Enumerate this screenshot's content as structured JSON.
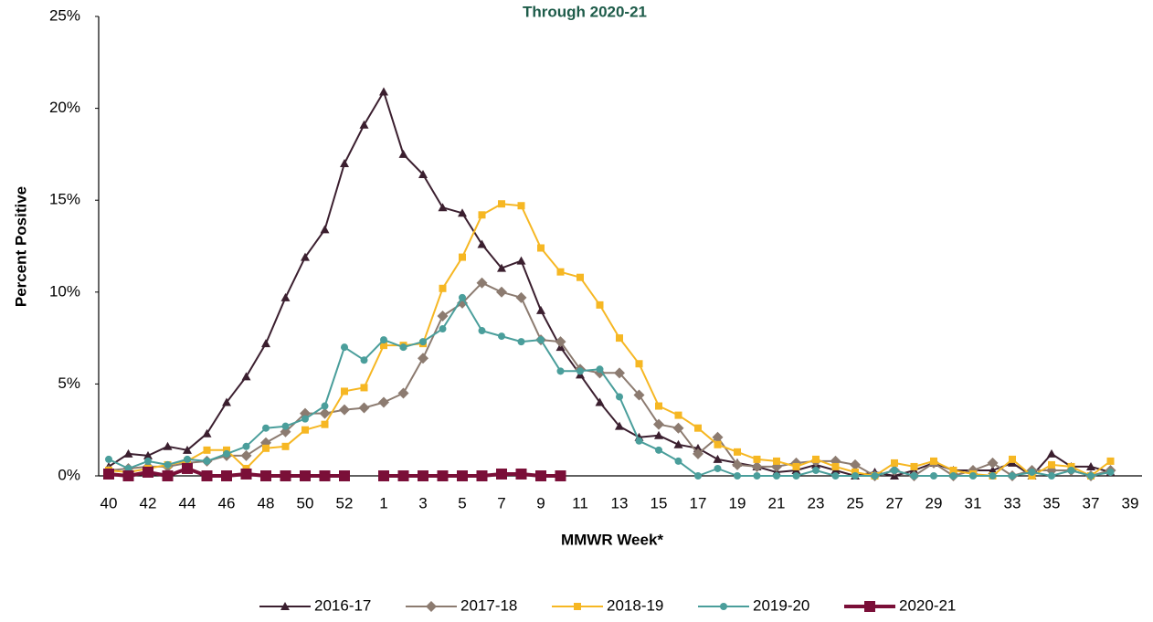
{
  "chart_data": {
    "type": "line",
    "title": "Through 2020-21",
    "x_label": "MMWR Week*",
    "y_label": "Percent Positive",
    "categories": [
      "40",
      null,
      "42",
      null,
      "44",
      null,
      "46",
      null,
      "48",
      null,
      "50",
      null,
      "52",
      null,
      "1",
      null,
      "3",
      null,
      "5",
      null,
      "7",
      null,
      "9",
      null,
      "11",
      null,
      "13",
      null,
      "15",
      null,
      "17",
      null,
      "19",
      null,
      "21",
      null,
      "23",
      null,
      "25",
      null,
      "27",
      null,
      "29",
      null,
      "31",
      null,
      "33",
      null,
      "35",
      null,
      "37",
      null,
      "39"
    ],
    "ylim": [
      0,
      25
    ],
    "yticks": [
      {
        "value": 0,
        "label": "0%"
      },
      {
        "value": 5,
        "label": "5%"
      },
      {
        "value": 10,
        "label": "10%"
      },
      {
        "value": 15,
        "label": "15%"
      },
      {
        "value": 20,
        "label": "20%"
      },
      {
        "value": 25,
        "label": "25%"
      }
    ],
    "grid": false,
    "legend": "bottom",
    "series": [
      {
        "name": "2016-17",
        "color": "#3b1f2f",
        "marker": "triangle",
        "values": [
          0.5,
          1.2,
          1.1,
          1.6,
          1.4,
          2.3,
          4.0,
          5.4,
          7.2,
          9.7,
          11.9,
          13.4,
          17.0,
          19.1,
          20.9,
          17.5,
          16.4,
          14.6,
          14.3,
          12.6,
          11.3,
          11.7,
          9.0,
          7.0,
          5.5,
          4.0,
          2.7,
          2.1,
          2.2,
          1.7,
          1.5,
          0.9,
          0.7,
          0.5,
          0.2,
          0.3,
          0.6,
          0.3,
          0.0,
          0.2,
          0.0,
          0.3,
          0.7,
          0.3,
          0.3,
          0.3,
          0.7,
          0.0,
          1.2,
          0.5,
          0.5,
          0.2,
          null
        ]
      },
      {
        "name": "2017-18",
        "color": "#8c7b70",
        "marker": "diamond",
        "values": [
          0.3,
          0.4,
          0.5,
          0.5,
          0.7,
          0.8,
          1.1,
          1.1,
          1.8,
          2.4,
          3.4,
          3.4,
          3.6,
          3.7,
          4.0,
          4.5,
          6.4,
          8.7,
          9.4,
          10.5,
          10.0,
          9.7,
          7.4,
          7.3,
          5.8,
          5.6,
          5.6,
          4.4,
          2.8,
          2.6,
          1.2,
          2.1,
          0.6,
          0.5,
          0.5,
          0.7,
          0.8,
          0.8,
          0.6,
          0.0,
          0.3,
          0.0,
          0.7,
          0.0,
          0.3,
          0.7,
          0.0,
          0.3,
          0.3,
          0.3,
          0.0,
          0.3,
          null
        ]
      },
      {
        "name": "2018-19",
        "color": "#f6b723",
        "marker": "square",
        "values": [
          0.3,
          0.2,
          0.4,
          0.6,
          0.8,
          1.4,
          1.4,
          0.4,
          1.5,
          1.6,
          2.5,
          2.8,
          4.6,
          4.8,
          7.1,
          7.1,
          7.2,
          10.2,
          11.9,
          14.2,
          14.8,
          14.7,
          12.4,
          11.1,
          10.8,
          9.3,
          7.5,
          6.1,
          3.8,
          3.3,
          2.6,
          1.7,
          1.3,
          0.9,
          0.8,
          0.5,
          0.9,
          0.5,
          0.2,
          0.0,
          0.7,
          0.5,
          0.8,
          0.3,
          0.1,
          0.0,
          0.9,
          0.0,
          0.6,
          0.5,
          0.0,
          0.8,
          null
        ]
      },
      {
        "name": "2019-20",
        "color": "#4a9e9b",
        "marker": "circle",
        "values": [
          0.9,
          0.4,
          0.8,
          0.6,
          0.9,
          0.8,
          1.2,
          1.6,
          2.6,
          2.7,
          3.1,
          3.8,
          7.0,
          6.3,
          7.4,
          7.0,
          7.3,
          8.0,
          9.7,
          7.9,
          7.6,
          7.3,
          7.4,
          5.7,
          5.7,
          5.8,
          4.3,
          1.9,
          1.4,
          0.8,
          0.0,
          0.4,
          0.0,
          0.0,
          0.0,
          0.0,
          0.3,
          0.0,
          0.0,
          0.0,
          0.3,
          0.0,
          0.0,
          0.0,
          0.0,
          0.0,
          0.0,
          0.2,
          0.0,
          0.3,
          0.0,
          0.2,
          null
        ]
      },
      {
        "name": "2020-21",
        "color": "#7a0f38",
        "marker": "big-square",
        "values": [
          0.1,
          0.0,
          0.2,
          0.0,
          0.4,
          0.0,
          0.0,
          0.1,
          0.0,
          0.0,
          0.0,
          0.0,
          0.0,
          null,
          0.0,
          0.0,
          0.0,
          0.0,
          0.0,
          0.0,
          0.1,
          0.1,
          0.0,
          0.0,
          null,
          null,
          null,
          null,
          null,
          null,
          null,
          null,
          null,
          null,
          null,
          null,
          null,
          null,
          null,
          null,
          null,
          null,
          null,
          null,
          null,
          null,
          null,
          null,
          null,
          null,
          null,
          null,
          null
        ]
      }
    ]
  }
}
